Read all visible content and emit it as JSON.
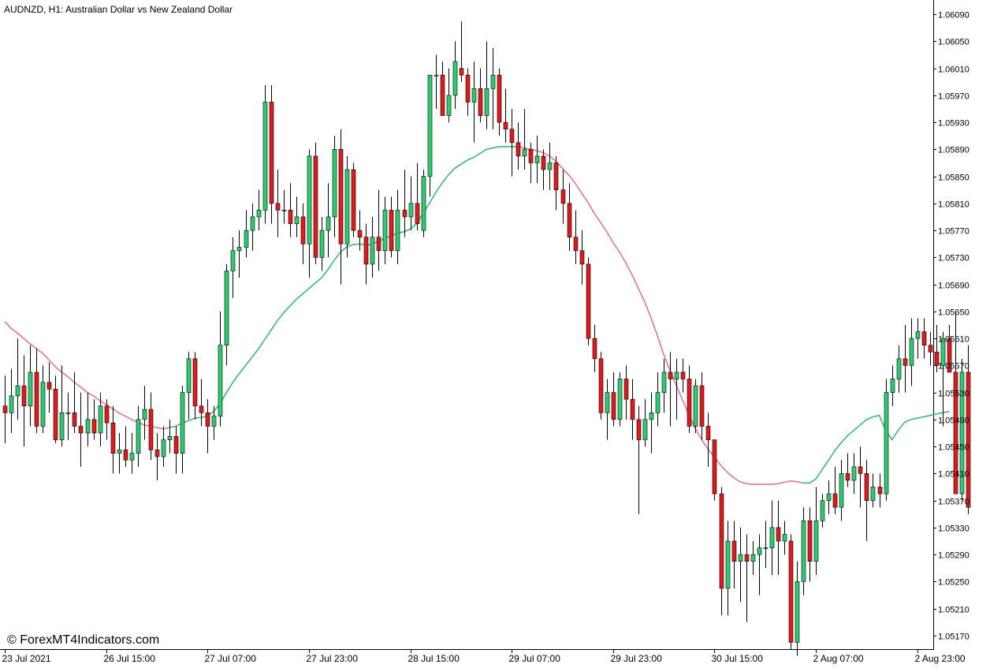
{
  "header": {
    "title": "AUDNZD, H1:  Australian Dollar vs New Zealand Dollar",
    "watermark": "© ForexMT4Indicators.com"
  },
  "colors": {
    "bull": "#2ecc71",
    "bear": "#e01b1b",
    "ma_up": "#3cb878",
    "ma_down": "#e0769a",
    "wick": "#000000",
    "grid": "#000000"
  },
  "chart_data": {
    "type": "candlestick",
    "symbol": "AUDNZD",
    "timeframe": "H1",
    "ylim": [
      1.0515,
      1.0611
    ],
    "y_ticks": [
      "1.06090",
      "1.06050",
      "1.06010",
      "1.05970",
      "1.05930",
      "1.05890",
      "1.05850",
      "1.05810",
      "1.05770",
      "1.05730",
      "1.05690",
      "1.05650",
      "1.05610",
      "1.05570",
      "1.05530",
      "1.05490",
      "1.05450",
      "1.05410",
      "1.05370",
      "1.05330",
      "1.05290",
      "1.05250",
      "1.05210",
      "1.05170"
    ],
    "x_ticks": [
      {
        "label": "23 Jul 2021",
        "index": 0
      },
      {
        "label": "26 Jul 15:00",
        "index": 16
      },
      {
        "label": "27 Jul 07:00",
        "index": 32
      },
      {
        "label": "27 Jul 23:00",
        "index": 48
      },
      {
        "label": "28 Jul 15:00",
        "index": 64
      },
      {
        "label": "29 Jul 07:00",
        "index": 80
      },
      {
        "label": "29 Jul 23:00",
        "index": 96
      },
      {
        "label": "30 Jul 15:00",
        "index": 112
      },
      {
        "label": "2 Aug 07:00",
        "index": 128
      },
      {
        "label": "2 Aug 23:00",
        "index": 144
      }
    ],
    "candles": [
      [
        1.0551,
        1.05555,
        1.05455,
        1.055
      ],
      [
        1.055,
        1.05565,
        1.0547,
        1.05525
      ],
      [
        1.05525,
        1.0561,
        1.0549,
        1.0554
      ],
      [
        1.0554,
        1.05585,
        1.0545,
        1.0551
      ],
      [
        1.0551,
        1.056,
        1.0548,
        1.0556
      ],
      [
        1.0556,
        1.05595,
        1.0547,
        1.0548
      ],
      [
        1.0548,
        1.0557,
        1.0547,
        1.05545
      ],
      [
        1.05545,
        1.05575,
        1.055,
        1.05535
      ],
      [
        1.05535,
        1.05555,
        1.05455,
        1.0546
      ],
      [
        1.0546,
        1.0557,
        1.0545,
        1.055
      ],
      [
        1.055,
        1.0553,
        1.0546,
        1.055
      ],
      [
        1.055,
        1.0556,
        1.0547,
        1.0548
      ],
      [
        1.0548,
        1.0553,
        1.0542,
        1.0547
      ],
      [
        1.0547,
        1.0553,
        1.0545,
        1.0549
      ],
      [
        1.0549,
        1.0552,
        1.0546,
        1.0547
      ],
      [
        1.0547,
        1.0553,
        1.0545,
        1.0551
      ],
      [
        1.0551,
        1.0552,
        1.0546,
        1.05485
      ],
      [
        1.05485,
        1.0551,
        1.0541,
        1.0544
      ],
      [
        1.0544,
        1.0547,
        1.0541,
        1.05445
      ],
      [
        1.05445,
        1.0548,
        1.0542,
        1.0543
      ],
      [
        1.0543,
        1.0547,
        1.0541,
        1.0544
      ],
      [
        1.0544,
        1.0551,
        1.0542,
        1.0549
      ],
      [
        1.0549,
        1.0554,
        1.0546,
        1.05505
      ],
      [
        1.05505,
        1.0553,
        1.0543,
        1.05445
      ],
      [
        1.05445,
        1.0547,
        1.054,
        1.05435
      ],
      [
        1.05435,
        1.0548,
        1.0542,
        1.0546
      ],
      [
        1.0546,
        1.0549,
        1.0544,
        1.05465
      ],
      [
        1.05465,
        1.0548,
        1.0541,
        1.0544
      ],
      [
        1.0544,
        1.0554,
        1.0541,
        1.0553
      ],
      [
        1.0553,
        1.0559,
        1.0549,
        1.0558
      ],
      [
        1.0558,
        1.0559,
        1.0549,
        1.0551
      ],
      [
        1.0551,
        1.0555,
        1.0548,
        1.055
      ],
      [
        1.055,
        1.0552,
        1.0544,
        1.0548
      ],
      [
        1.0548,
        1.0551,
        1.0546,
        1.05495
      ],
      [
        1.05495,
        1.0565,
        1.0548,
        1.056
      ],
      [
        1.056,
        1.0572,
        1.0557,
        1.0571
      ],
      [
        1.0571,
        1.0576,
        1.0567,
        1.0574
      ],
      [
        1.0574,
        1.0577,
        1.057,
        1.05745
      ],
      [
        1.05745,
        1.058,
        1.0573,
        1.0577
      ],
      [
        1.0577,
        1.0581,
        1.0574,
        1.0579
      ],
      [
        1.0579,
        1.0583,
        1.0577,
        1.058
      ],
      [
        1.058,
        1.05985,
        1.0578,
        1.0596
      ],
      [
        1.0596,
        1.05985,
        1.0578,
        1.0581
      ],
      [
        1.0581,
        1.0586,
        1.0576,
        1.058
      ],
      [
        1.058,
        1.0583,
        1.0578,
        1.058
      ],
      [
        1.058,
        1.0584,
        1.0576,
        1.0578
      ],
      [
        1.0578,
        1.0582,
        1.0576,
        1.0579
      ],
      [
        1.0579,
        1.0581,
        1.0572,
        1.0575
      ],
      [
        1.0575,
        1.0589,
        1.057,
        1.0588
      ],
      [
        1.0588,
        1.059,
        1.0572,
        1.0573
      ],
      [
        1.0573,
        1.0579,
        1.0571,
        1.0577
      ],
      [
        1.0577,
        1.0584,
        1.0573,
        1.0579
      ],
      [
        1.0579,
        1.0591,
        1.0576,
        1.0589
      ],
      [
        1.0589,
        1.0592,
        1.0569,
        1.0575
      ],
      [
        1.0575,
        1.0588,
        1.0573,
        1.0586
      ],
      [
        1.0586,
        1.0587,
        1.0576,
        1.0577
      ],
      [
        1.0577,
        1.058,
        1.0574,
        1.0576
      ],
      [
        1.0576,
        1.0578,
        1.0569,
        1.0572
      ],
      [
        1.0572,
        1.0579,
        1.057,
        1.0576
      ],
      [
        1.0576,
        1.0583,
        1.0571,
        1.0574
      ],
      [
        1.0574,
        1.0582,
        1.0572,
        1.058
      ],
      [
        1.058,
        1.0582,
        1.0573,
        1.0574
      ],
      [
        1.0574,
        1.0583,
        1.0572,
        1.058
      ],
      [
        1.058,
        1.0586,
        1.0576,
        1.0579
      ],
      [
        1.0579,
        1.0585,
        1.0577,
        1.0581
      ],
      [
        1.0581,
        1.0587,
        1.0577,
        1.0578
      ],
      [
        1.0577,
        1.0586,
        1.0576,
        1.0585
      ],
      [
        1.0585,
        1.06,
        1.0582,
        1.06
      ],
      [
        1.06,
        1.0603,
        1.0595,
        1.06
      ],
      [
        1.06,
        1.0602,
        1.0594,
        1.0594
      ],
      [
        1.0594,
        1.0601,
        1.0593,
        1.0597
      ],
      [
        1.0597,
        1.0605,
        1.0595,
        1.0602
      ],
      [
        1.0601,
        1.0608,
        1.0599,
        1.06
      ],
      [
        1.06,
        1.0601,
        1.0594,
        1.0596
      ],
      [
        1.0596,
        1.0602,
        1.059,
        1.0598
      ],
      [
        1.0598,
        1.0601,
        1.0593,
        1.0594
      ],
      [
        1.0594,
        1.0605,
        1.0592,
        1.0598
      ],
      [
        1.0598,
        1.0604,
        1.0592,
        1.06
      ],
      [
        1.06,
        1.0601,
        1.0591,
        1.0593
      ],
      [
        1.0593,
        1.0598,
        1.059,
        1.0592
      ],
      [
        1.0592,
        1.0595,
        1.0585,
        1.059
      ],
      [
        1.059,
        1.0593,
        1.0586,
        1.0588
      ],
      [
        1.0588,
        1.0595,
        1.0586,
        1.0589
      ],
      [
        1.0589,
        1.059,
        1.0584,
        1.0587
      ],
      [
        1.0587,
        1.0591,
        1.0584,
        1.0588
      ],
      [
        1.0588,
        1.0589,
        1.0583,
        1.0586
      ],
      [
        1.0586,
        1.059,
        1.0583,
        1.0587
      ],
      [
        1.0587,
        1.0588,
        1.058,
        1.0583
      ],
      [
        1.0583,
        1.0586,
        1.0578,
        1.0581
      ],
      [
        1.0581,
        1.0584,
        1.0574,
        1.0576
      ],
      [
        1.0576,
        1.058,
        1.0572,
        1.0574
      ],
      [
        1.0574,
        1.0577,
        1.0569,
        1.0572
      ],
      [
        1.0572,
        1.0573,
        1.056,
        1.0561
      ],
      [
        1.0561,
        1.0563,
        1.0556,
        1.0558
      ],
      [
        1.0558,
        1.0559,
        1.0549,
        1.055
      ],
      [
        1.055,
        1.0555,
        1.0546,
        1.0553
      ],
      [
        1.0553,
        1.0556,
        1.0548,
        1.0549
      ],
      [
        1.0549,
        1.0556,
        1.0548,
        1.0555
      ],
      [
        1.0555,
        1.0557,
        1.0549,
        1.0552
      ],
      [
        1.0552,
        1.0555,
        1.0546,
        1.0549
      ],
      [
        1.0549,
        1.0551,
        1.0535,
        1.0546
      ],
      [
        1.0546,
        1.0552,
        1.0545,
        1.0549
      ],
      [
        1.0549,
        1.0553,
        1.0544,
        1.055
      ],
      [
        1.055,
        1.0556,
        1.0548,
        1.0553
      ],
      [
        1.0553,
        1.0558,
        1.055,
        1.0556
      ],
      [
        1.0556,
        1.0559,
        1.0548,
        1.0555
      ],
      [
        1.0555,
        1.0558,
        1.0549,
        1.0556
      ],
      [
        1.0556,
        1.0558,
        1.0553,
        1.0555
      ],
      [
        1.0555,
        1.0557,
        1.0547,
        1.0548
      ],
      [
        1.0548,
        1.0555,
        1.0547,
        1.0554
      ],
      [
        1.0554,
        1.0556,
        1.0546,
        1.0548
      ],
      [
        1.0548,
        1.055,
        1.0542,
        1.0546
      ],
      [
        1.0546,
        1.0546,
        1.0537,
        1.0538
      ],
      [
        1.0538,
        1.0539,
        1.052,
        1.0524
      ],
      [
        1.0524,
        1.0534,
        1.052,
        1.0531
      ],
      [
        1.0531,
        1.0534,
        1.0524,
        1.0528
      ],
      [
        1.0528,
        1.0533,
        1.0522,
        1.0529
      ],
      [
        1.0529,
        1.0532,
        1.0519,
        1.0528
      ],
      [
        1.0528,
        1.0531,
        1.0526,
        1.0529
      ],
      [
        1.0529,
        1.0532,
        1.0523,
        1.053
      ],
      [
        1.053,
        1.0534,
        1.0527,
        1.053
      ],
      [
        1.053,
        1.0537,
        1.0526,
        1.0533
      ],
      [
        1.0533,
        1.0537,
        1.0526,
        1.0531
      ],
      [
        1.0531,
        1.0534,
        1.0529,
        1.0532
      ],
      [
        1.0531,
        1.0532,
        1.0515,
        1.0516
      ],
      [
        1.0516,
        1.0528,
        1.0514,
        1.0525
      ],
      [
        1.0525,
        1.0536,
        1.0523,
        1.0534
      ],
      [
        1.0534,
        1.0536,
        1.0525,
        1.0528
      ],
      [
        1.0528,
        1.0539,
        1.0526,
        1.0534
      ],
      [
        1.0534,
        1.0538,
        1.0533,
        1.0537
      ],
      [
        1.0537,
        1.054,
        1.0535,
        1.0538
      ],
      [
        1.0538,
        1.0542,
        1.0535,
        1.0536
      ],
      [
        1.0536,
        1.0543,
        1.0534,
        1.0541
      ],
      [
        1.0541,
        1.0544,
        1.0539,
        1.054
      ],
      [
        1.054,
        1.0544,
        1.0538,
        1.0542
      ],
      [
        1.0542,
        1.0545,
        1.0536,
        1.0541
      ],
      [
        1.0541,
        1.0543,
        1.0531,
        1.0537
      ],
      [
        1.0537,
        1.0541,
        1.0536,
        1.0539
      ],
      [
        1.0539,
        1.0541,
        1.0536,
        1.0538
      ],
      [
        1.0538,
        1.0555,
        1.0537,
        1.0553
      ],
      [
        1.0553,
        1.0557,
        1.0551,
        1.0555
      ],
      [
        1.0555,
        1.056,
        1.0553,
        1.0558
      ],
      [
        1.0558,
        1.0563,
        1.0553,
        1.0557
      ],
      [
        1.0557,
        1.0564,
        1.0554,
        1.0561
      ],
      [
        1.0561,
        1.0564,
        1.0558,
        1.0562
      ],
      [
        1.0562,
        1.0564,
        1.0558,
        1.056
      ],
      [
        1.056,
        1.0562,
        1.0557,
        1.0559
      ],
      [
        1.0559,
        1.0563,
        1.0556,
        1.0557
      ],
      [
        1.0557,
        1.0562,
        1.0548,
        1.0561
      ],
      [
        1.0561,
        1.0563,
        1.0556,
        1.0556
      ],
      [
        1.0556,
        1.0565,
        1.0538,
        1.0538
      ],
      [
        1.0538,
        1.0558,
        1.0537,
        1.0556
      ],
      [
        1.0556,
        1.056,
        1.0535,
        1.0536
      ]
    ],
    "moving_average": [
      1.05635,
      1.05625,
      1.05618,
      1.0561,
      1.05602,
      1.05595,
      1.05588,
      1.05578,
      1.05568,
      1.0556,
      1.05553,
      1.05545,
      1.05538,
      1.0553,
      1.05525,
      1.05518,
      1.05512,
      1.05506,
      1.055,
      1.05495,
      1.0549,
      1.05486,
      1.05482,
      1.0548,
      1.05478,
      1.05476,
      1.05478,
      1.0548,
      1.05485,
      1.05488,
      1.05492,
      1.05493,
      1.05495,
      1.05502,
      1.05514,
      1.0553,
      1.05545,
      1.05558,
      1.0557,
      1.05582,
      1.05594,
      1.05608,
      1.05622,
      1.05636,
      1.05648,
      1.05658,
      1.05668,
      1.05676,
      1.05684,
      1.05692,
      1.057,
      1.05712,
      1.05726,
      1.05738,
      1.05746,
      1.05749,
      1.0575,
      1.05748,
      1.0575,
      1.05754,
      1.05758,
      1.05762,
      1.05766,
      1.05768,
      1.05772,
      1.0578,
      1.05795,
      1.0581,
      1.05826,
      1.0584,
      1.05852,
      1.05862,
      1.05868,
      1.05874,
      1.05878,
      1.05884,
      1.0589,
      1.05892,
      1.05894,
      1.05894,
      1.05894,
      1.05894,
      1.05892,
      1.0589,
      1.05888,
      1.05885,
      1.0588,
      1.05872,
      1.05862,
      1.05852,
      1.0584,
      1.05826,
      1.05812,
      1.05796,
      1.05782,
      1.05768,
      1.05752,
      1.05738,
      1.05722,
      1.05704,
      1.05684,
      1.05664,
      1.0564,
      1.05614,
      1.05586,
      1.05562,
      1.0554,
      1.05518,
      1.05496,
      1.05476,
      1.0546,
      1.05446,
      1.05434,
      1.05422,
      1.05412,
      1.05404,
      1.05398,
      1.05395,
      1.05394,
      1.05394,
      1.05394,
      1.05394,
      1.05395,
      1.05397,
      1.05399,
      1.05398,
      1.05396,
      1.05396,
      1.05402,
      1.05416,
      1.0543,
      1.05444,
      1.05456,
      1.05466,
      1.05474,
      1.05482,
      1.0549,
      1.05494,
      1.05496,
      1.05474,
      1.0546,
      1.05474,
      1.05486,
      1.0549,
      1.05492,
      1.05494,
      1.05496,
      1.05498,
      1.055,
      1.05502
    ],
    "ma_color_switch": [
      {
        "from": 0,
        "to": 26,
        "trend": "down"
      },
      {
        "from": 26,
        "to": 81,
        "trend": "up"
      },
      {
        "from": 81,
        "to": 126,
        "trend": "down"
      },
      {
        "from": 126,
        "to": 149,
        "trend": "up"
      },
      {
        "from": 149,
        "to": 154,
        "trend": "down"
      }
    ]
  }
}
